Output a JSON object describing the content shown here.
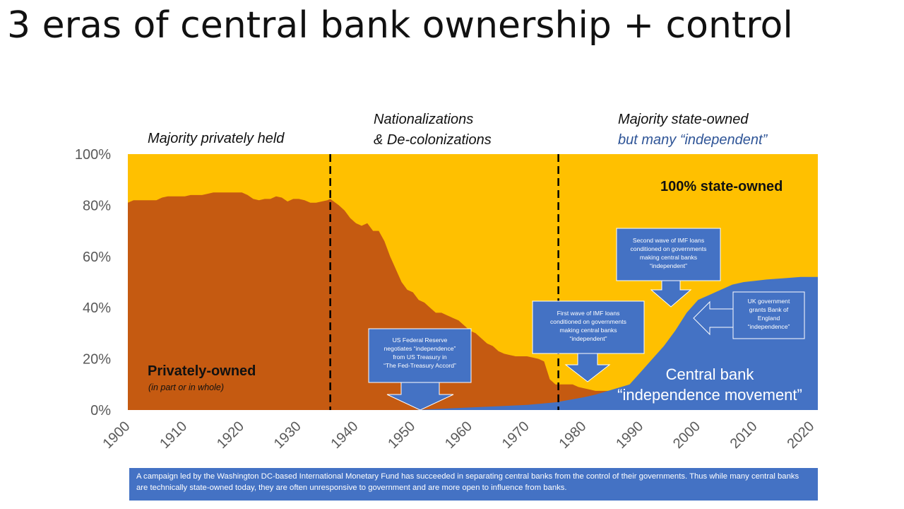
{
  "title": "3 eras of central bank ownership + control",
  "eras": {
    "era1_line1": "Majority privately held",
    "era2_line1": "Nationalizations",
    "era2_line2": "& De-colonizations",
    "era3_line1": "Majority state-owned",
    "era3_line2": "but many “independent”"
  },
  "regions": {
    "state_owned": "100% state-owned",
    "private_line1": "Privately-owned",
    "private_line2": "(in part or in whole)",
    "independence_line1": "Central bank",
    "independence_line2": "“independence movement”"
  },
  "callouts": {
    "fed_accord": [
      "US Federal Reserve",
      "negotiates “independence”",
      "from US Treasury in",
      "“The Fed-Treasury Accord”"
    ],
    "imf_first_wave": [
      "First wave of IMF loans",
      "conditioned on governments",
      "making central banks",
      "“independent”"
    ],
    "imf_second_wave": [
      "Second wave of IMF loans",
      "conditioned on governments",
      "making central banks",
      "“independent”"
    ],
    "uk_boe": [
      "UK government",
      "grants Bank of",
      "England",
      "“independence”"
    ]
  },
  "footnote": "A campaign led by the Washington DC-based International Monetary Fund has succeeded in separating central banks from the control of their governments. Thus while many central banks are technically state-owned today, they are often unresponsive to government and are more open to influence from banks.",
  "colors": {
    "state_owned": "#FFC000",
    "private": "#C55A11",
    "independent": "#4472C4",
    "era3_subtitle": "#2F5597",
    "axis_text": "#595959"
  },
  "chart_data": {
    "type": "area",
    "xlim": [
      1900,
      2021
    ],
    "ylim": [
      0,
      100
    ],
    "x_ticks": [
      1900,
      1910,
      1920,
      1930,
      1940,
      1950,
      1960,
      1970,
      1980,
      1990,
      2000,
      2010,
      2020
    ],
    "y_ticks": [
      "0%",
      "20%",
      "40%",
      "60%",
      "80%",
      "100%"
    ],
    "era_dividers": [
      1935.5,
      1975.5
    ],
    "series": [
      {
        "name": "Privately-owned",
        "color": "#C55A11",
        "points": [
          [
            1900,
            81
          ],
          [
            1901,
            82
          ],
          [
            1902,
            82
          ],
          [
            1903,
            82
          ],
          [
            1904,
            82
          ],
          [
            1905,
            82
          ],
          [
            1906,
            83
          ],
          [
            1907,
            83.5
          ],
          [
            1908,
            83.5
          ],
          [
            1909,
            83.5
          ],
          [
            1910,
            83.5
          ],
          [
            1911,
            84
          ],
          [
            1912,
            84
          ],
          [
            1913,
            84
          ],
          [
            1914,
            84.5
          ],
          [
            1915,
            85
          ],
          [
            1916,
            85
          ],
          [
            1917,
            85
          ],
          [
            1918,
            85
          ],
          [
            1919,
            85
          ],
          [
            1920,
            85
          ],
          [
            1921,
            84
          ],
          [
            1922,
            82.5
          ],
          [
            1923,
            82
          ],
          [
            1924,
            82.5
          ],
          [
            1925,
            82.5
          ],
          [
            1926,
            83.5
          ],
          [
            1927,
            83
          ],
          [
            1928,
            81.5
          ],
          [
            1929,
            82.5
          ],
          [
            1930,
            82.5
          ],
          [
            1931,
            82
          ],
          [
            1932,
            81
          ],
          [
            1933,
            81
          ],
          [
            1934,
            81.5
          ],
          [
            1935,
            82
          ],
          [
            1935.5,
            82.5
          ],
          [
            1937,
            80
          ],
          [
            1938,
            78
          ],
          [
            1939,
            75
          ],
          [
            1940,
            73
          ],
          [
            1941,
            72
          ],
          [
            1942,
            73
          ],
          [
            1943,
            70
          ],
          [
            1944,
            70
          ],
          [
            1945,
            66
          ],
          [
            1946,
            60
          ],
          [
            1947,
            55
          ],
          [
            1948,
            50
          ],
          [
            1949,
            47
          ],
          [
            1950,
            46
          ],
          [
            1951,
            43
          ],
          [
            1952,
            42
          ],
          [
            1953,
            40
          ],
          [
            1954,
            38
          ],
          [
            1955,
            38
          ],
          [
            1956,
            37
          ],
          [
            1957,
            36
          ],
          [
            1958,
            35
          ],
          [
            1959,
            33
          ],
          [
            1960,
            31
          ],
          [
            1961,
            30
          ],
          [
            1962,
            28
          ],
          [
            1963,
            26
          ],
          [
            1964,
            25
          ],
          [
            1965,
            23
          ],
          [
            1966,
            22
          ],
          [
            1967,
            21.5
          ],
          [
            1968,
            21
          ],
          [
            1969,
            21
          ],
          [
            1970,
            21
          ],
          [
            1971,
            20.5
          ],
          [
            1972,
            20
          ],
          [
            1973,
            19
          ],
          [
            1974,
            12
          ],
          [
            1975,
            10
          ],
          [
            1976,
            10
          ],
          [
            1977,
            10
          ],
          [
            1978,
            10
          ],
          [
            1979,
            9
          ],
          [
            1980,
            8.5
          ],
          [
            1981,
            8
          ],
          [
            1982,
            7.5
          ],
          [
            1983,
            7.5
          ],
          [
            1984,
            7.5
          ],
          [
            1985,
            7.5
          ],
          [
            1986,
            7.5
          ],
          [
            1987,
            7.5
          ],
          [
            1988,
            7.5
          ],
          [
            1989,
            7.5
          ],
          [
            1990,
            7.5
          ],
          [
            1991,
            7.5
          ],
          [
            1992,
            7.5
          ],
          [
            1993,
            7.5
          ],
          [
            1994,
            7.5
          ],
          [
            1995,
            7.5
          ],
          [
            1996,
            7.5
          ],
          [
            1997,
            7.5
          ],
          [
            1998,
            7.5
          ],
          [
            1999,
            7.5
          ],
          [
            2000,
            7.5
          ],
          [
            2001,
            7.5
          ],
          [
            2002,
            7.5
          ],
          [
            2003,
            7.5
          ],
          [
            2004,
            7.5
          ],
          [
            2005,
            7.5
          ],
          [
            2006,
            7.5
          ],
          [
            2007,
            7.5
          ],
          [
            2008,
            7.5
          ],
          [
            2009,
            7.5
          ],
          [
            2010,
            7.5
          ],
          [
            2011,
            7.5
          ],
          [
            2012,
            7.5
          ],
          [
            2013,
            7.5
          ],
          [
            2014,
            7.5
          ],
          [
            2015,
            7.5
          ],
          [
            2016,
            7.5
          ],
          [
            2017,
            7.5
          ],
          [
            2018,
            7.5
          ],
          [
            2019,
            7.5
          ],
          [
            2020,
            7.5
          ],
          [
            2021,
            7.5
          ]
        ]
      },
      {
        "name": "Central bank “independence movement”",
        "color": "#4472C4",
        "points": [
          [
            1950,
            0
          ],
          [
            1955,
            0.5
          ],
          [
            1960,
            1
          ],
          [
            1965,
            1.5
          ],
          [
            1970,
            2
          ],
          [
            1975,
            3
          ],
          [
            1980,
            5
          ],
          [
            1982,
            6
          ],
          [
            1985,
            8
          ],
          [
            1988,
            10
          ],
          [
            1990,
            15
          ],
          [
            1992,
            20
          ],
          [
            1994,
            25
          ],
          [
            1996,
            31
          ],
          [
            1998,
            38
          ],
          [
            2000,
            43
          ],
          [
            2002,
            45
          ],
          [
            2004,
            47
          ],
          [
            2006,
            49
          ],
          [
            2008,
            50
          ],
          [
            2010,
            50.5
          ],
          [
            2012,
            51
          ],
          [
            2015,
            51.5
          ],
          [
            2018,
            52
          ],
          [
            2021,
            52
          ]
        ]
      },
      {
        "name": "100% state-owned",
        "color": "#FFC000",
        "points": [
          [
            1900,
            100
          ],
          [
            2021,
            100
          ]
        ]
      }
    ]
  }
}
